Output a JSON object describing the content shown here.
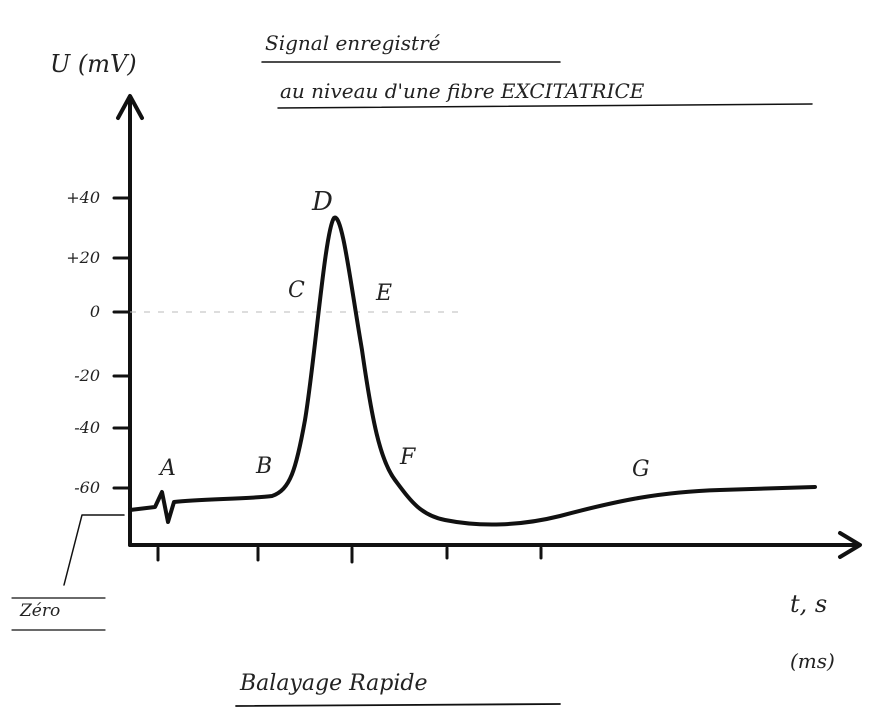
{
  "header": {
    "title_lines": [
      "Signal enregistré",
      "au niveau d'une fibre EXCITATRICE"
    ]
  },
  "axes": {
    "y_label": "U (mV)",
    "x_label": "t, s",
    "x_unit": "(ms)",
    "y_tick_labels": [
      "+40",
      "+20",
      "0",
      "-20",
      "-40",
      "-60"
    ]
  },
  "points": [
    "A",
    "B",
    "C",
    "D",
    "E",
    "F",
    "G"
  ],
  "callout": "Zéro",
  "footer": "Balayage Rapide"
}
